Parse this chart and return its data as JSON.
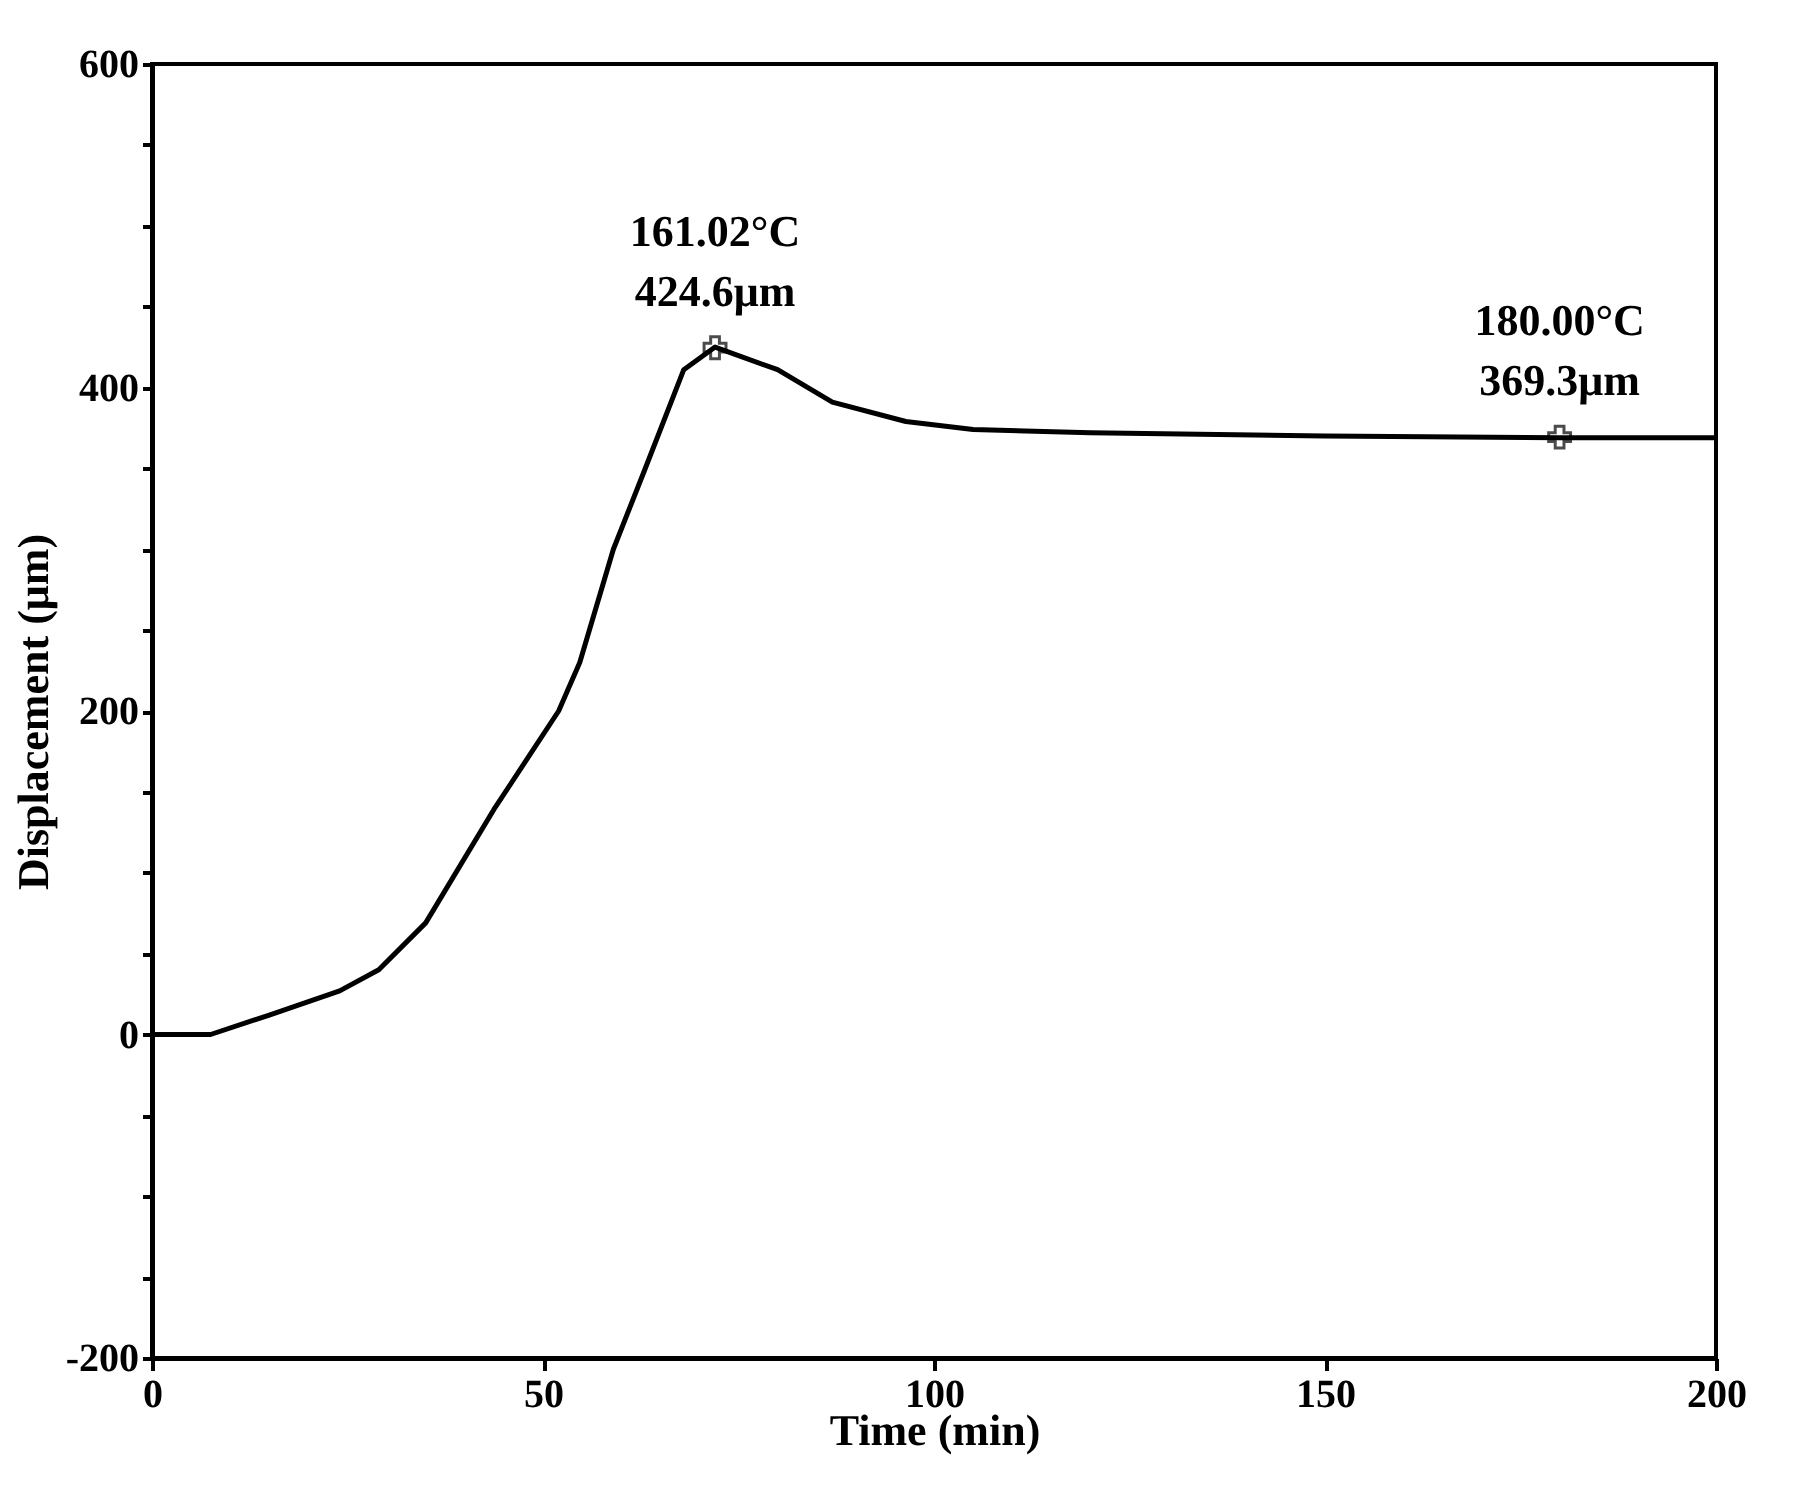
{
  "chart_data": {
    "type": "line",
    "xlabel": "Time (min)",
    "ylabel": "Displacement (μm)",
    "xlim": [
      0,
      200
    ],
    "xticks": [
      0,
      50,
      100,
      150,
      200
    ],
    "ylim": [
      -200,
      600
    ],
    "yticks": [
      -200,
      {
        "value": -150,
        "label": null
      },
      {
        "value": -100,
        "label": null
      },
      {
        "value": -50,
        "label": null
      },
      0,
      {
        "value": 50,
        "label": null
      },
      {
        "value": 100,
        "label": null
      },
      {
        "value": 150,
        "label": null
      },
      200,
      {
        "value": 250,
        "label": null
      },
      {
        "value": 300,
        "label": null
      },
      {
        "value": 350,
        "label": null
      },
      400,
      {
        "value": 450,
        "label": null
      },
      {
        "value": 500,
        "label": null
      },
      {
        "value": 550,
        "label": null
      },
      600
    ],
    "grid": false,
    "marker": "none",
    "line_style": "solid",
    "series": [
      {
        "color": "#000000",
        "x": [
          0,
          7.5,
          15,
          24,
          29,
          35,
          43.7,
          52,
          54.7,
          59,
          63,
          68,
          72,
          80,
          87,
          96.4,
          105,
          120,
          150,
          180,
          200
        ],
        "values": [
          0,
          0,
          12,
          27,
          40,
          69,
          139,
          200,
          230,
          300,
          349,
          411,
          425,
          411,
          391,
          379,
          374,
          372,
          370,
          369,
          369
        ]
      }
    ],
    "annotations": [
      {
        "text": "161.02°C\n424.6μm",
        "x": 72,
        "y": 424.6
      },
      {
        "text": "180.00°C\n369.3μm",
        "x": 180,
        "y": 369.3
      }
    ]
  }
}
